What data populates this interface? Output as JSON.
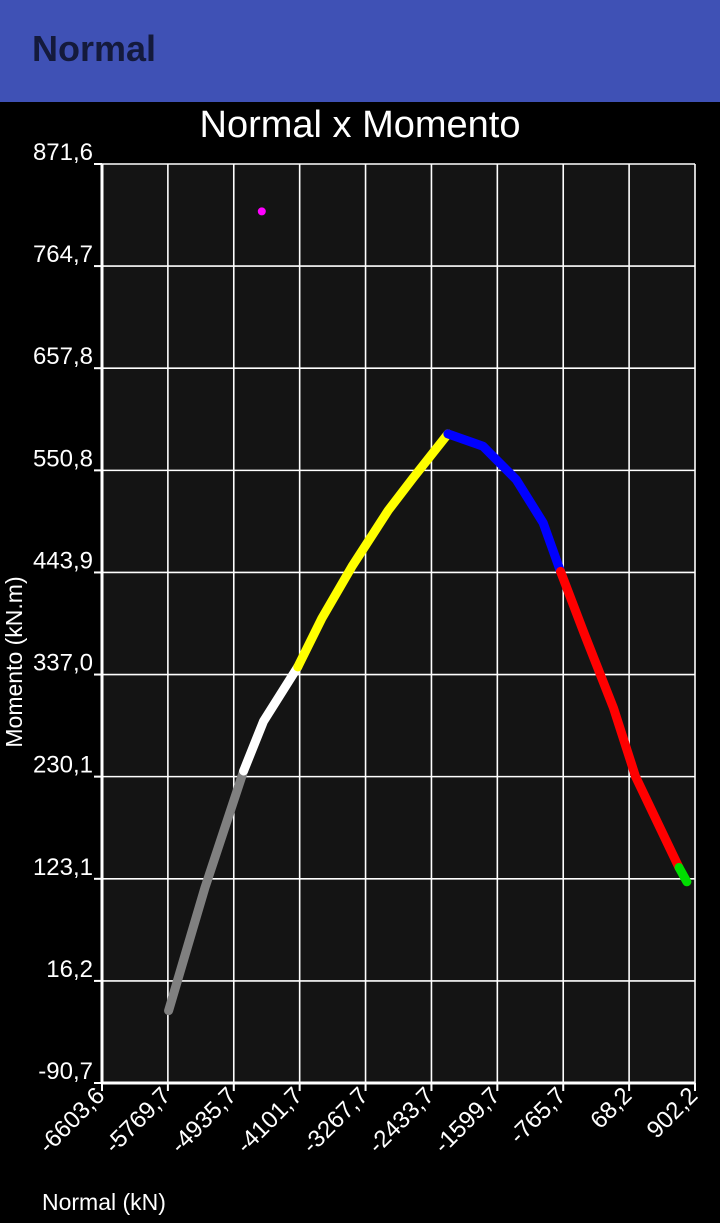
{
  "app": {
    "title": "Normal"
  },
  "colors": {
    "appbar": "#3F51B5",
    "appbar_text": "#141A3C",
    "background": "#000000",
    "plot_area": "#141414",
    "grid": "#FFFFFF",
    "text": "#FFFFFF"
  },
  "chart_data": {
    "type": "line",
    "title": "Normal x Momento",
    "xlabel": "Normal (kN)",
    "ylabel": "Momento (kN.m)",
    "xlim": [
      -6603.6,
      902.2
    ],
    "ylim": [
      -90.7,
      871.6
    ],
    "grid": true,
    "x_ticks": [
      -6603.6,
      -5769.7,
      -4935.7,
      -4101.7,
      -3267.7,
      -2433.7,
      -1599.7,
      -765.7,
      68.2,
      902.2
    ],
    "x_tick_labels": [
      "-6603,6",
      "-5769,7",
      "-4935,7",
      "-4101,7",
      "-3267,7",
      "-2433,7",
      "-1599,7",
      "-765,7",
      "68,2",
      "902,2"
    ],
    "y_ticks": [
      -90.7,
      16.2,
      123.1,
      230.1,
      337.0,
      443.9,
      550.8,
      657.8,
      764.7,
      871.6
    ],
    "y_tick_labels": [
      "-90,7",
      "16,2",
      "123,1",
      "230,1",
      "337,0",
      "443,9",
      "550,8",
      "657,8",
      "764,7",
      "871,6"
    ],
    "series": [
      {
        "color": "#808080",
        "x": [
          -5761,
          -5300,
          -4811
        ],
        "y": [
          -15,
          114,
          236
        ]
      },
      {
        "color": "#FFFFFF",
        "x": [
          -4811,
          -4560,
          -4125
        ],
        "y": [
          236,
          288,
          345
        ]
      },
      {
        "color": "#FFFF00",
        "x": [
          -4125,
          -3820,
          -3440,
          -2980,
          -2665,
          -2225
        ],
        "y": [
          345,
          396,
          450,
          509,
          543,
          589
        ]
      },
      {
        "color": "#0000FF",
        "x": [
          -2225,
          -1780,
          -1360,
          -1020,
          -800
        ],
        "y": [
          589,
          576,
          541,
          496,
          445
        ]
      },
      {
        "color": "#FF0000",
        "x": [
          -800,
          -500,
          -130,
          150,
          700
        ],
        "y": [
          445,
          380,
          302,
          230,
          135
        ]
      },
      {
        "color": "#00DD00",
        "x": [
          700,
          800
        ],
        "y": [
          135,
          120
        ]
      }
    ],
    "points": [
      {
        "color": "#FF00FF",
        "x": [
          -4581
        ],
        "y": [
          822
        ]
      }
    ]
  }
}
